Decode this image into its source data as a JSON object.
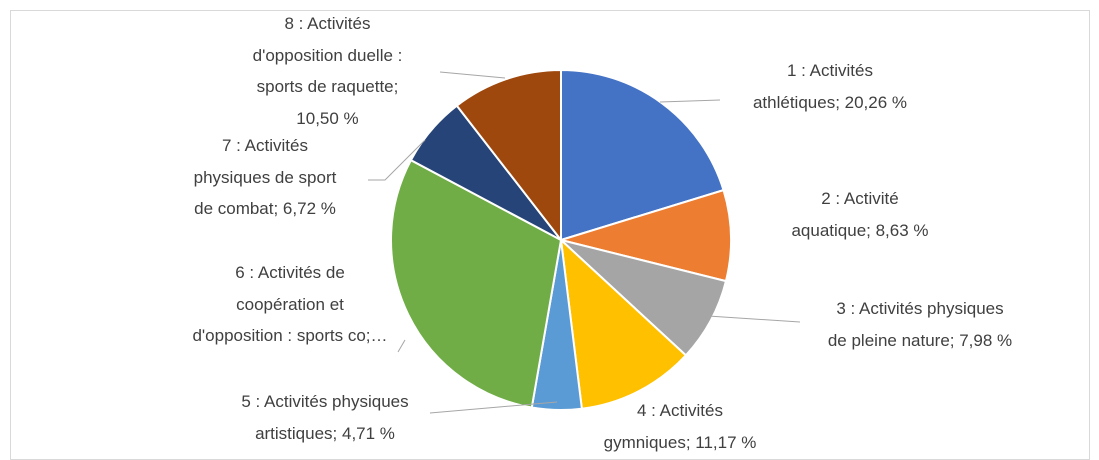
{
  "chart_data": {
    "type": "pie",
    "values": [
      20.26,
      8.63,
      7.98,
      11.17,
      4.71,
      30.03,
      6.72,
      10.5
    ],
    "value_labels": [
      "1 : Activités\nathlétiques; 20,26 %",
      "2 : Activité\naquatique; 8,63 %",
      "3 : Activités physiques\nde pleine nature; 7,98 %",
      "4 : Activités\ngymniques; 11,17 %",
      "5 : Activités physiques\nartistiques; 4,71 %",
      "6 : Activités de\ncoopération et\nd'opposition : sports co;…",
      "7 : Activités\nphysiques de sport\nde combat; 6,72 %",
      "8 : Activités\nd'opposition duelle :\nsports de raquette;\n10,50 %"
    ],
    "colors": [
      "#4472c4",
      "#ed7d31",
      "#a5a5a5",
      "#ffc000",
      "#5b9bd5",
      "#70ad47",
      "#264478",
      "#9e480e"
    ]
  }
}
